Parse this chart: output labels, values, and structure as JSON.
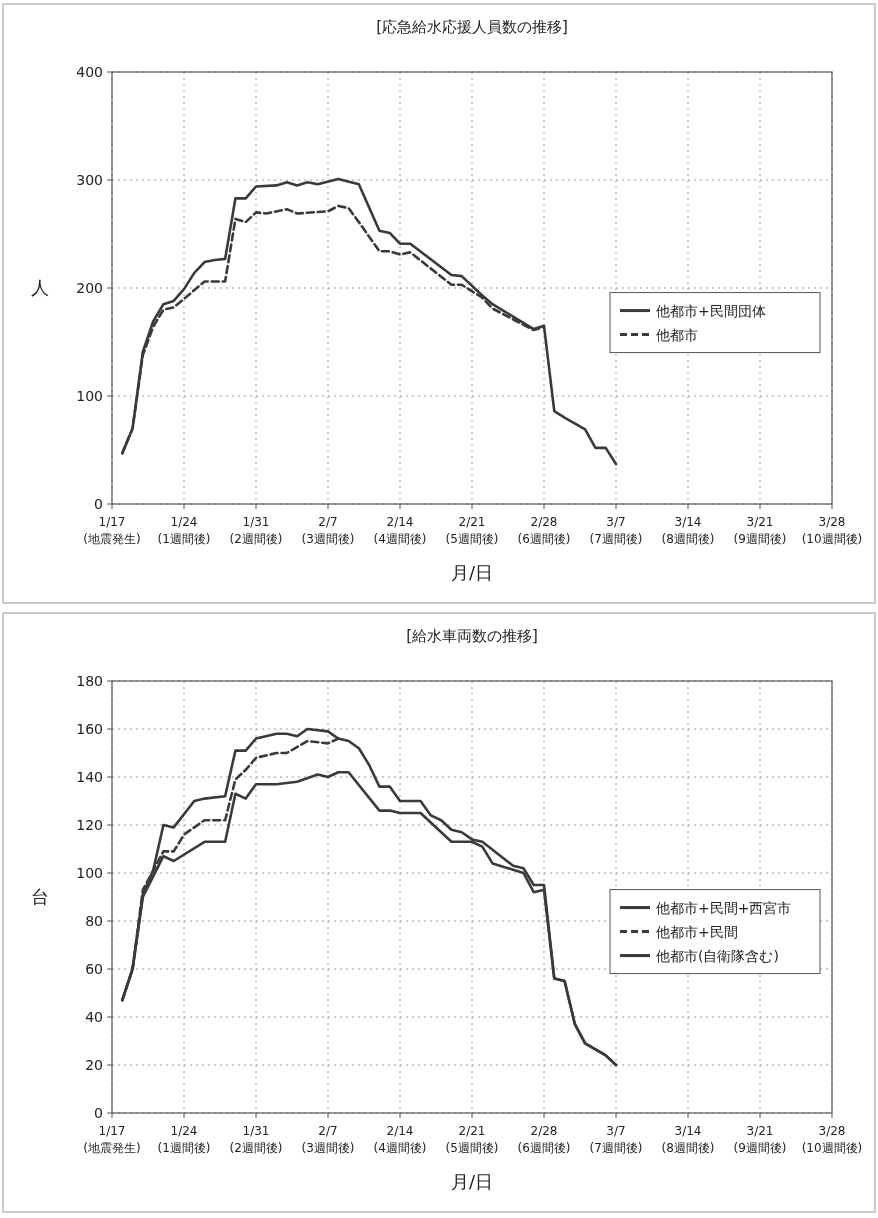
{
  "chart_data": [
    {
      "type": "line",
      "title": "[応急給水応援人員数の推移]",
      "xlabel": "月/日",
      "ylabel": "人",
      "xlim": [
        "--01-17",
        "--03-28"
      ],
      "ylim": [
        0,
        400
      ],
      "yticks": [
        0,
        100,
        200,
        300,
        400
      ],
      "xticks": [
        {
          "value": "--01-17",
          "label": "1/17\n(地震発生)"
        },
        {
          "value": "--01-24",
          "label": "1/24\n(1週間後)"
        },
        {
          "value": "--01-31",
          "label": "1/31\n(2週間後)"
        },
        {
          "value": "--02-07",
          "label": "2/7\n(3週間後)"
        },
        {
          "value": "--02-14",
          "label": "2/14\n(4週間後)"
        },
        {
          "value": "--02-21",
          "label": "2/21\n(5週間後)"
        },
        {
          "value": "--02-28",
          "label": "2/28\n(6週間後)"
        },
        {
          "value": "--03-07",
          "label": "3/7\n(7週間後)"
        },
        {
          "value": "--03-14",
          "label": "3/14\n(8週間後)"
        },
        {
          "value": "--03-21",
          "label": "3/21\n(9週間後)"
        },
        {
          "value": "--03-28",
          "label": "3/28\n(10週間後)"
        }
      ],
      "grid": true,
      "legend": "right",
      "series": [
        {
          "name": "他都市+民間団体",
          "color": "#3a3a3a",
          "line_style": "solid",
          "x": [
            "--01-18",
            "--01-19",
            "--01-20",
            "--01-21",
            "--01-22",
            "--01-23",
            "--01-24",
            "--01-25",
            "--01-26",
            "--01-27",
            "--01-28",
            "--01-29",
            "--01-30",
            "--01-31",
            "--02-02",
            "--02-03",
            "--02-04",
            "--02-05",
            "--02-06",
            "--02-08",
            "--02-10",
            "--02-12",
            "--02-13",
            "--02-14",
            "--02-15",
            "--02-19",
            "--02-20",
            "--02-22",
            "--02-23",
            "--02-27",
            "--02-28",
            "--03-01",
            "--03-02",
            "--03-04",
            "--03-05",
            "--03-06",
            "--03-07"
          ],
          "values": [
            47,
            70,
            141,
            169,
            185,
            188,
            199,
            214,
            224,
            226,
            227,
            283,
            283,
            294,
            295,
            298,
            295,
            298,
            296,
            301,
            296,
            253,
            251,
            241,
            241,
            212,
            211,
            193,
            185,
            162,
            165,
            86,
            80,
            69,
            52,
            52,
            37
          ]
        },
        {
          "name": "他都市",
          "color": "#3a3a3a",
          "line_style": "dashed",
          "x": [
            "--01-18",
            "--01-19",
            "--01-20",
            "--01-21",
            "--01-22",
            "--01-23",
            "--01-24",
            "--01-26",
            "--01-28",
            "--01-29",
            "--01-30",
            "--01-31",
            "--02-01",
            "--02-03",
            "--02-04",
            "--02-07",
            "--02-08",
            "--02-09",
            "--02-10",
            "--02-12",
            "--02-13",
            "--02-14",
            "--02-15",
            "--02-19",
            "--02-20",
            "--02-22",
            "--02-23",
            "--02-27",
            "--02-28"
          ],
          "values": [
            47,
            70,
            138,
            164,
            180,
            182,
            190,
            206,
            206,
            264,
            261,
            270,
            269,
            273,
            269,
            271,
            276,
            274,
            261,
            234,
            234,
            231,
            233,
            203,
            203,
            191,
            181,
            161,
            164
          ]
        }
      ]
    },
    {
      "type": "line",
      "title": "[給水車両数の推移]",
      "xlabel": "月/日",
      "ylabel": "台",
      "xlim": [
        "--01-17",
        "--03-28"
      ],
      "ylim": [
        0,
        180
      ],
      "yticks": [
        0,
        20,
        40,
        60,
        80,
        100,
        120,
        140,
        160,
        180
      ],
      "xticks": [
        {
          "value": "--01-17",
          "label": "1/17\n(地震発生)"
        },
        {
          "value": "--01-24",
          "label": "1/24\n(1週間後)"
        },
        {
          "value": "--01-31",
          "label": "1/31\n(2週間後)"
        },
        {
          "value": "--02-07",
          "label": "2/7\n(3週間後)"
        },
        {
          "value": "--02-14",
          "label": "2/14\n(4週間後)"
        },
        {
          "value": "--02-21",
          "label": "2/21\n(5週間後)"
        },
        {
          "value": "--02-28",
          "label": "2/28\n(6週間後)"
        },
        {
          "value": "--03-07",
          "label": "3/7\n(7週間後)"
        },
        {
          "value": "--03-14",
          "label": "3/14\n(8週間後)"
        },
        {
          "value": "--03-21",
          "label": "3/21\n(9週間後)"
        },
        {
          "value": "--03-28",
          "label": "3/28\n(10週間後)"
        }
      ],
      "grid": true,
      "legend": "right",
      "series": [
        {
          "name": "他都市+民間+西宮市",
          "color": "#3a3a3a",
          "line_style": "solid",
          "x": [
            "--01-18",
            "--01-19",
            "--01-20",
            "--01-21",
            "--01-22",
            "--01-23",
            "--01-25",
            "--01-26",
            "--01-28",
            "--01-29",
            "--01-30",
            "--01-31",
            "--02-02",
            "--02-03",
            "--02-04",
            "--02-05",
            "--02-07",
            "--02-08",
            "--02-09",
            "--02-10",
            "--02-11",
            "--02-12",
            "--02-13",
            "--02-14",
            "--02-16",
            "--02-17",
            "--02-18",
            "--02-19",
            "--02-20",
            "--02-21",
            "--02-22",
            "--02-25",
            "--02-26",
            "--02-27",
            "--02-28",
            "--03-01",
            "--03-02",
            "--03-03",
            "--03-04",
            "--03-06",
            "--03-07"
          ],
          "values": [
            47,
            60,
            91,
            101,
            120,
            119,
            130,
            131,
            132,
            151,
            151,
            156,
            158,
            158,
            157,
            160,
            159,
            156,
            155,
            152,
            145,
            136,
            136,
            130,
            130,
            124,
            122,
            118,
            117,
            114,
            113,
            103,
            102,
            95,
            95,
            56,
            55,
            37,
            29,
            24,
            20
          ]
        },
        {
          "name": "他都市+民間",
          "color": "#3a3a3a",
          "line_style": "dashed",
          "x": [
            "--01-18",
            "--01-19",
            "--01-20",
            "--01-21",
            "--01-22",
            "--01-23",
            "--01-24",
            "--01-26",
            "--01-28",
            "--01-29",
            "--01-30",
            "--01-31",
            "--02-02",
            "--02-03",
            "--02-05",
            "--02-07",
            "--02-08"
          ],
          "values": [
            47,
            60,
            93,
            101,
            109,
            109,
            116,
            122,
            122,
            139,
            143,
            148,
            150,
            150,
            155,
            154,
            156
          ]
        },
        {
          "name": "他都市(自衛隊含む)",
          "color": "#3a3a3a",
          "line_style": "solid",
          "x": [
            "--01-18",
            "--01-19",
            "--01-20",
            "--01-22",
            "--01-23",
            "--01-26",
            "--01-28",
            "--01-29",
            "--01-30",
            "--01-31",
            "--02-02",
            "--02-04",
            "--02-06",
            "--02-07",
            "--02-08",
            "--02-09",
            "--02-12",
            "--02-13",
            "--02-14",
            "--02-16",
            "--02-19",
            "--02-21",
            "--02-22",
            "--02-23",
            "--02-26",
            "--02-27",
            "--02-28",
            "--03-01",
            "--03-02",
            "--03-03",
            "--03-04",
            "--03-06",
            "--03-07"
          ],
          "values": [
            47,
            60,
            90,
            107,
            105,
            113,
            113,
            133,
            131,
            137,
            137,
            138,
            141,
            140,
            142,
            142,
            126,
            126,
            125,
            125,
            113,
            113,
            111,
            104,
            100,
            92,
            93,
            56,
            55,
            37,
            29,
            24,
            20
          ]
        }
      ]
    }
  ]
}
